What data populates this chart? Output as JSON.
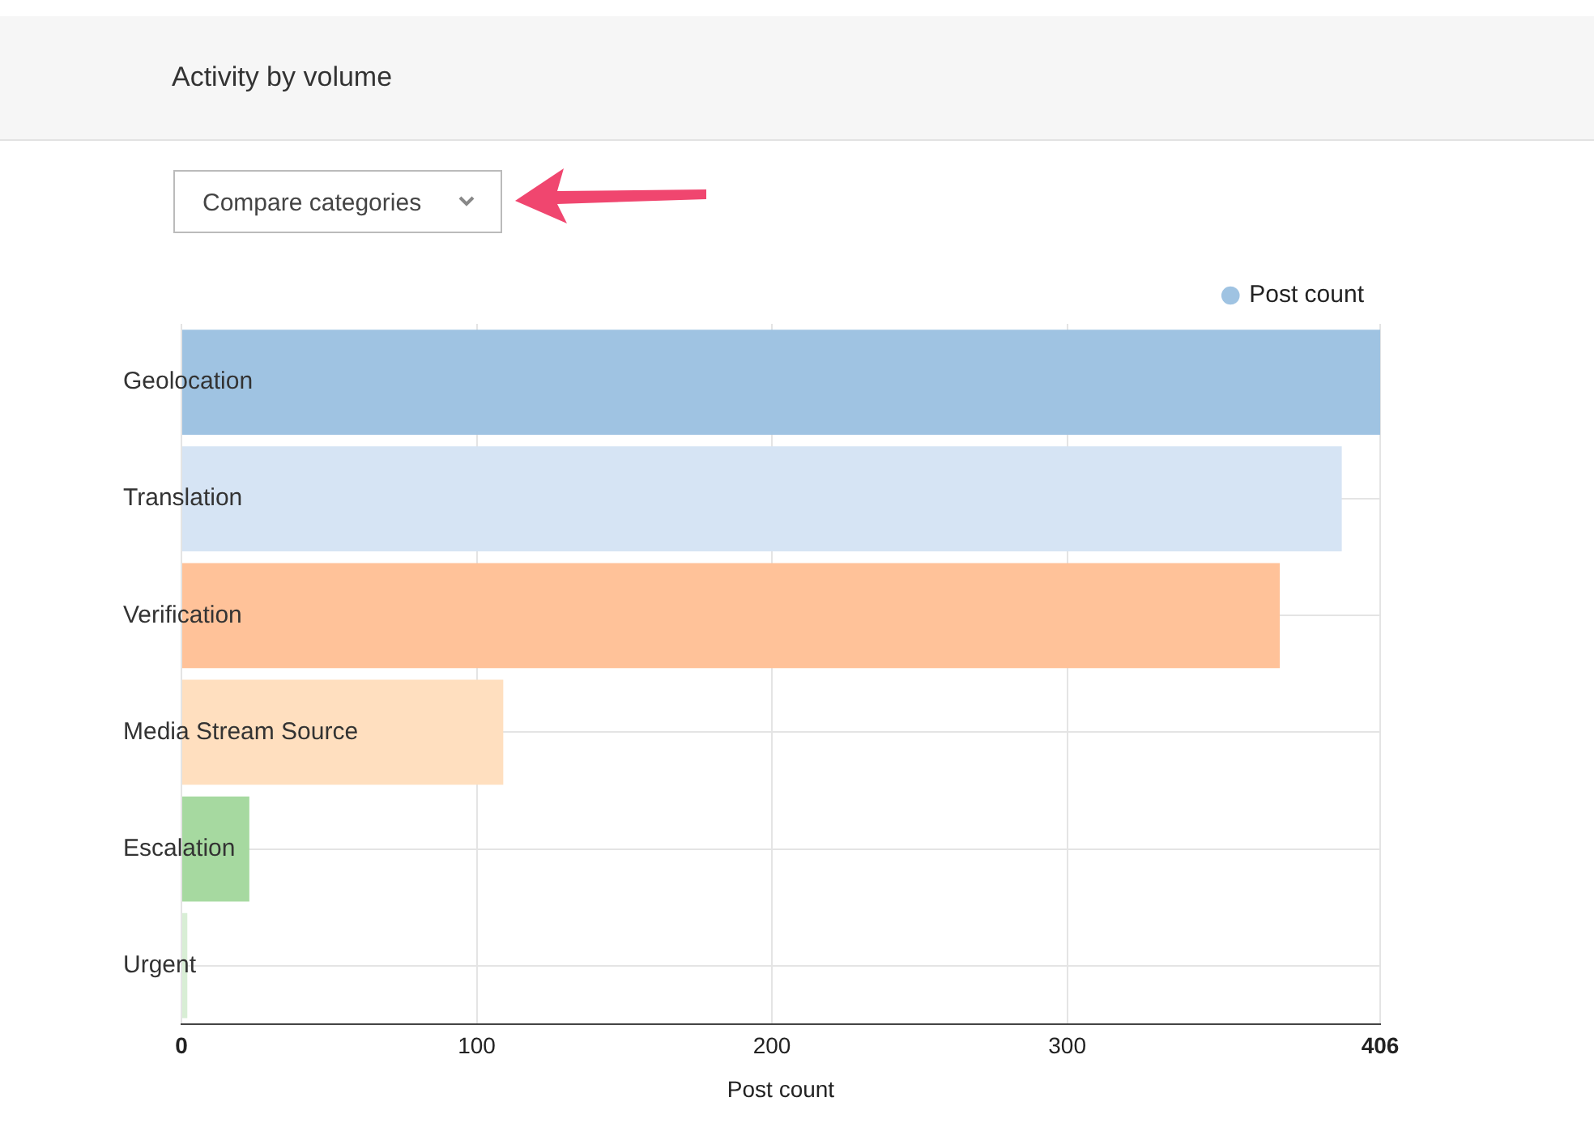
{
  "chart_data": {
    "type": "bar",
    "orientation": "horizontal",
    "title": "Activity by volume",
    "categories": [
      "Geolocation",
      "Translation",
      "Verification",
      "Media Stream Source",
      "Escalation",
      "Urgent"
    ],
    "series": [
      {
        "name": "Post count",
        "values": [
          406,
          393,
          372,
          109,
          23,
          2
        ],
        "colors": [
          "#9fc3e2",
          "#d6e4f4",
          "#ffc299",
          "#ffdfbf",
          "#a6d9a0",
          "#d8eed5"
        ]
      }
    ],
    "xlabel": "Post count",
    "xlim": [
      0,
      406
    ],
    "xticks": [
      0,
      100,
      200,
      300,
      406
    ],
    "grid": true,
    "legend": "top right",
    "annotations": [
      "Compare categories"
    ]
  }
}
